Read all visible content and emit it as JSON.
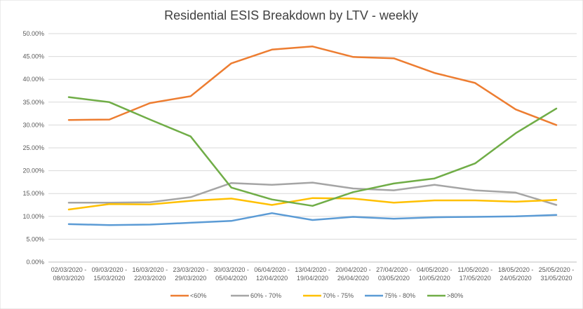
{
  "chart_data": {
    "type": "line",
    "title": "Residential ESIS Breakdown by LTV - weekly",
    "xlabel": "",
    "ylabel": "",
    "ylim": [
      0,
      0.5
    ],
    "y_ticks": [
      "0.00%",
      "5.00%",
      "10.00%",
      "15.00%",
      "20.00%",
      "25.00%",
      "30.00%",
      "35.00%",
      "40.00%",
      "45.00%",
      "50.00%"
    ],
    "grid": true,
    "legend_position": "bottom",
    "categories": [
      [
        "02/03/2020 -",
        "08/03/2020"
      ],
      [
        "09/03/2020 -",
        "15/03/2020"
      ],
      [
        "16/03/2020 -",
        "22/03/2020"
      ],
      [
        "23/03/2020 -",
        "29/03/2020"
      ],
      [
        "30/03/2020 -",
        "05/04/2020"
      ],
      [
        "06/04/2020 -",
        "12/04/2020"
      ],
      [
        "13/04/2020 -",
        "19/04/2020"
      ],
      [
        "20/04/2020 -",
        "26/04/2020"
      ],
      [
        "27/04/2020 -",
        "03/05/2020"
      ],
      [
        "04/05/2020 -",
        "10/05/2020"
      ],
      [
        "11/05/2020 -",
        "17/05/2020"
      ],
      [
        "18/05/2020 -",
        "24/05/2020"
      ],
      [
        "25/05/2020 -",
        "31/05/2020"
      ]
    ],
    "series": [
      {
        "name": "<60%",
        "color": "#ED7D31",
        "values": [
          0.311,
          0.312,
          0.348,
          0.363,
          0.435,
          0.465,
          0.472,
          0.449,
          0.446,
          0.414,
          0.392,
          0.334,
          0.3
        ]
      },
      {
        "name": "60% - 70%",
        "color": "#A5A5A5",
        "values": [
          0.13,
          0.13,
          0.131,
          0.142,
          0.173,
          0.169,
          0.174,
          0.161,
          0.157,
          0.169,
          0.157,
          0.152,
          0.125
        ]
      },
      {
        "name": "70% - 75%",
        "color": "#FFC000",
        "values": [
          0.115,
          0.127,
          0.126,
          0.134,
          0.139,
          0.125,
          0.14,
          0.139,
          0.13,
          0.135,
          0.135,
          0.132,
          0.136
        ]
      },
      {
        "name": "75% - 80%",
        "color": "#5B9BD5",
        "values": [
          0.083,
          0.081,
          0.082,
          0.086,
          0.09,
          0.107,
          0.092,
          0.099,
          0.095,
          0.098,
          0.099,
          0.1,
          0.103
        ]
      },
      {
        "name": ">80%",
        "color": "#70AD47",
        "values": [
          0.361,
          0.35,
          0.312,
          0.275,
          0.163,
          0.137,
          0.123,
          0.153,
          0.172,
          0.183,
          0.216,
          0.282,
          0.336
        ]
      }
    ]
  }
}
